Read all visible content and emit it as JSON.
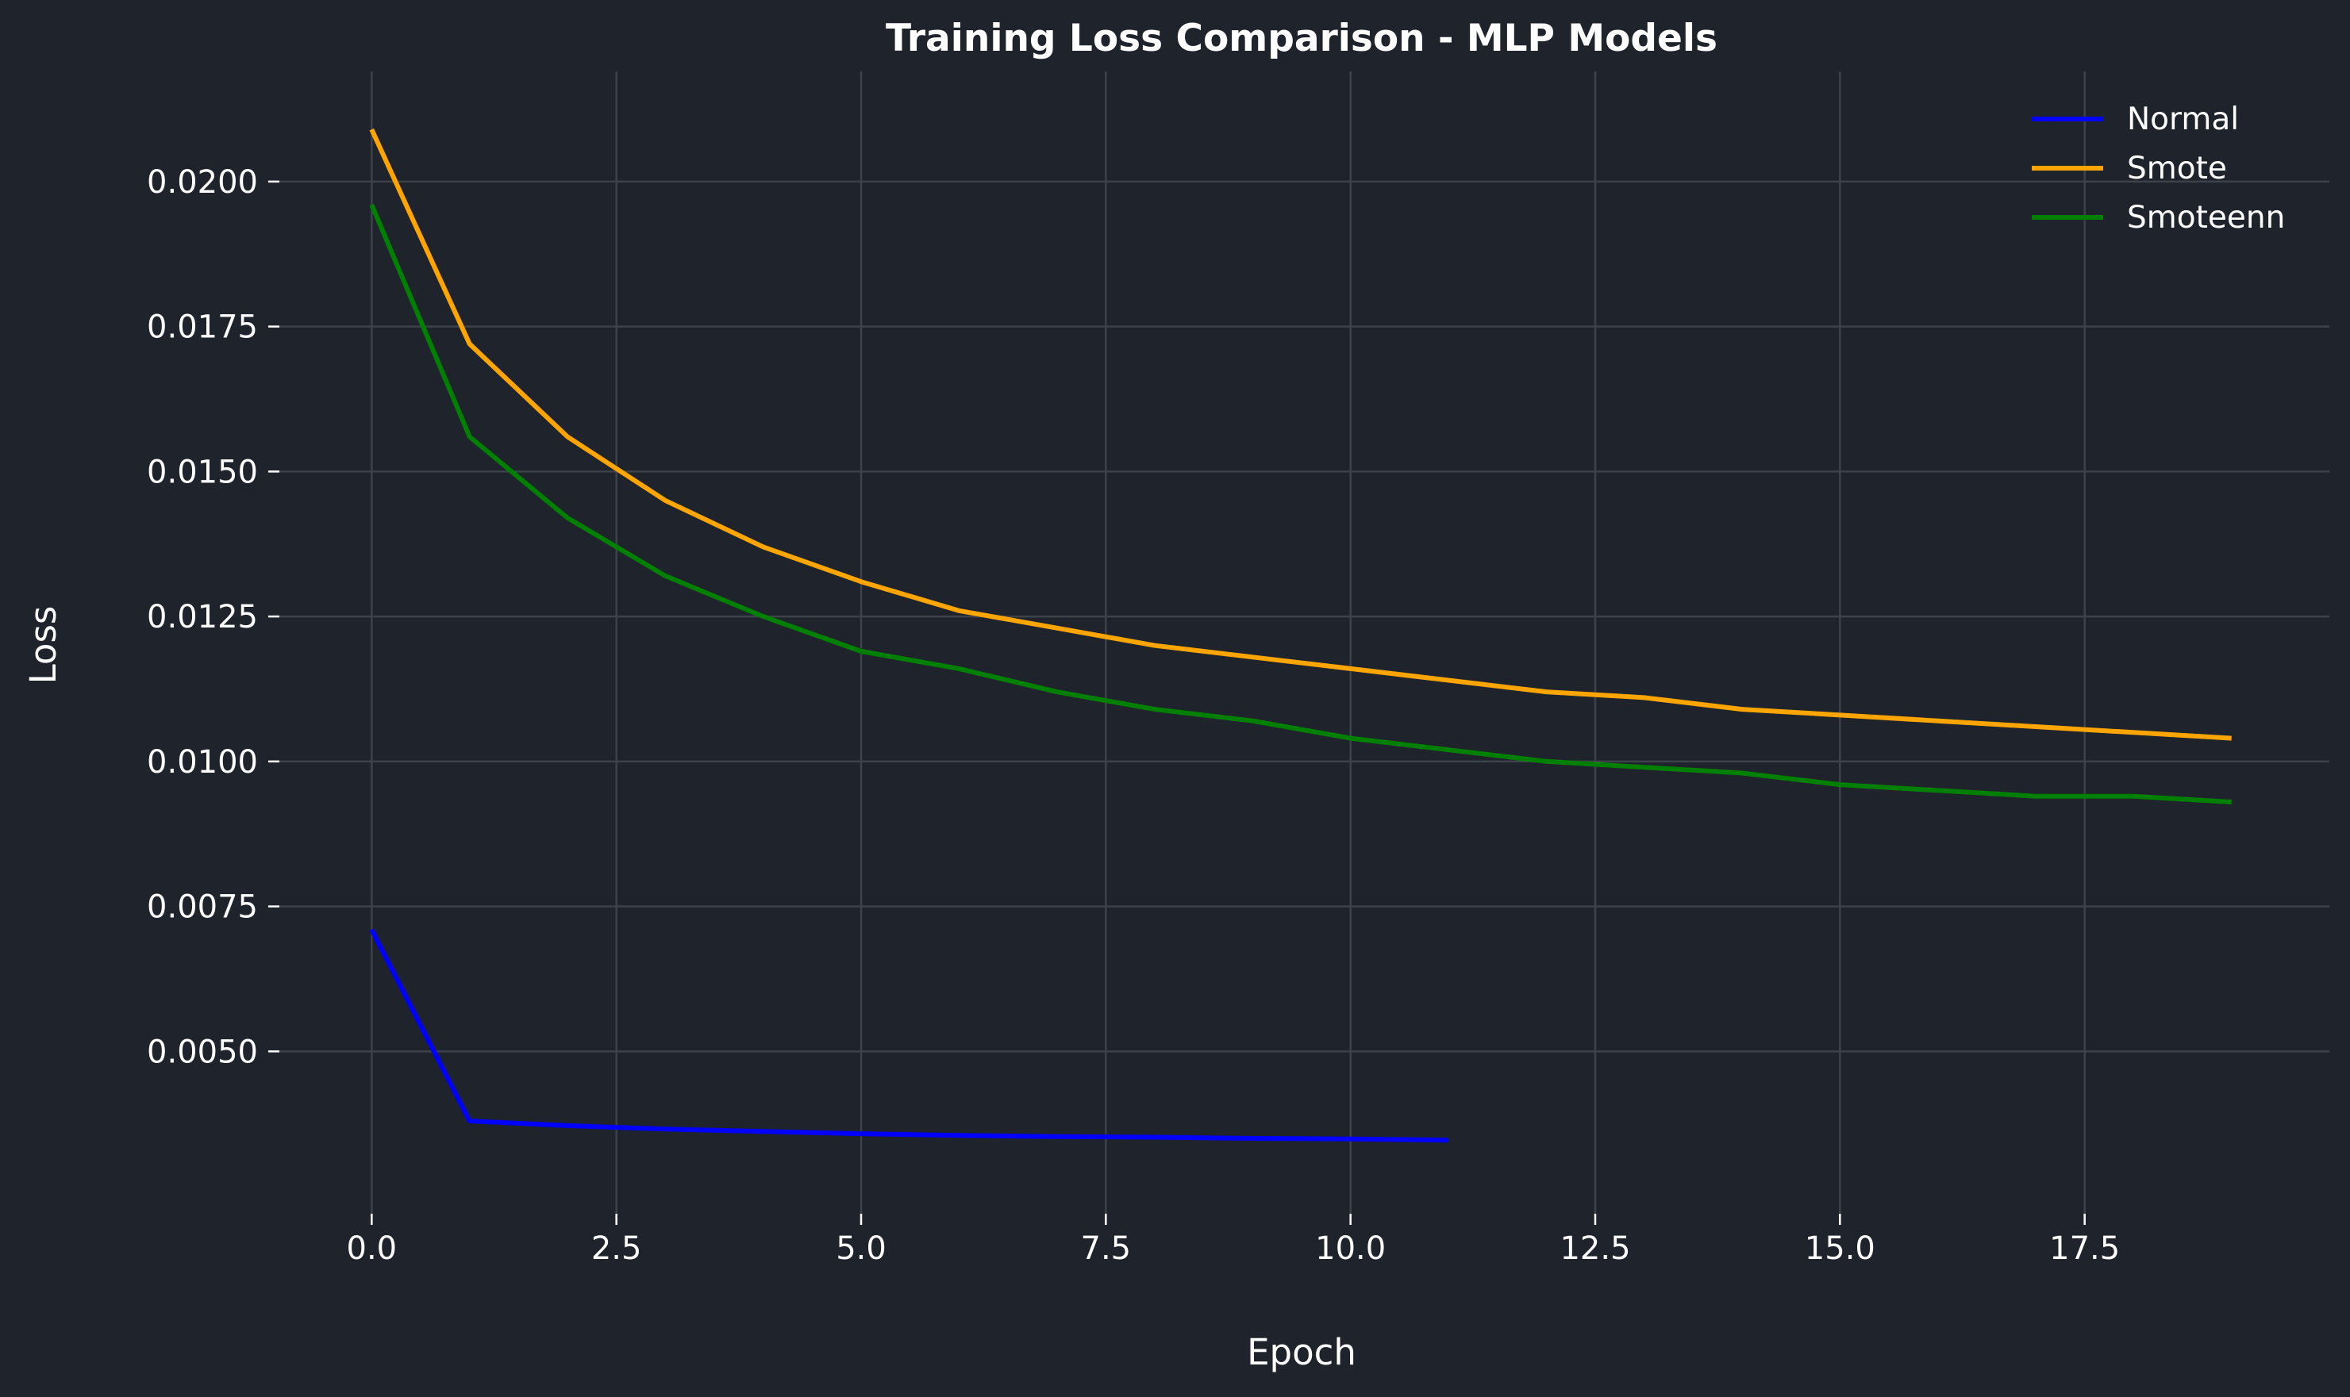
{
  "chart_data": {
    "type": "line",
    "title": "Training Loss Comparison - MLP Models",
    "xlabel": "Epoch",
    "ylabel": "Loss",
    "xlim": [
      -1.0,
      20.0
    ],
    "ylim": [
      0.0022,
      0.0219
    ],
    "xticks": [
      0,
      2.5,
      5,
      7.5,
      10,
      12.5,
      15,
      17.5
    ],
    "xtick_labels": [
      "0.0",
      "2.5",
      "5.0",
      "7.5",
      "10.0",
      "12.5",
      "15.0",
      "17.5"
    ],
    "yticks": [
      0.005,
      0.0075,
      0.01,
      0.0125,
      0.015,
      0.0175,
      0.02
    ],
    "ytick_labels": [
      "0.0050",
      "0.0075",
      "0.0100",
      "0.0125",
      "0.0150",
      "0.0175",
      "0.0200"
    ],
    "grid": true,
    "legend_position": "top-right",
    "background_color": "#1f232b",
    "grid_color": "#3d424b",
    "series": [
      {
        "name": "Normal",
        "color": "#0000ff",
        "x": [
          0,
          1,
          2,
          3,
          4,
          5,
          6,
          7,
          8,
          9,
          10,
          11
        ],
        "y": [
          0.0071,
          0.0038,
          0.00372,
          0.00366,
          0.00362,
          0.00358,
          0.00355,
          0.00353,
          0.00352,
          0.0035,
          0.00349,
          0.00347
        ]
      },
      {
        "name": "Smote",
        "color": "#ffa500",
        "x": [
          0,
          1,
          2,
          3,
          4,
          5,
          6,
          7,
          8,
          9,
          10,
          11,
          12,
          13,
          14,
          15,
          16,
          17,
          18,
          19
        ],
        "y": [
          0.0209,
          0.0172,
          0.0156,
          0.0145,
          0.0137,
          0.0131,
          0.0126,
          0.0123,
          0.012,
          0.0118,
          0.0116,
          0.0114,
          0.0112,
          0.0111,
          0.0109,
          0.0108,
          0.0107,
          0.0106,
          0.0105,
          0.0104
        ]
      },
      {
        "name": "Smoteenn",
        "color": "#008000",
        "x": [
          0,
          1,
          2,
          3,
          4,
          5,
          6,
          7,
          8,
          9,
          10,
          11,
          12,
          13,
          14,
          15,
          16,
          17,
          18,
          19
        ],
        "y": [
          0.0196,
          0.0156,
          0.0142,
          0.0132,
          0.0125,
          0.0119,
          0.0116,
          0.0112,
          0.0109,
          0.0107,
          0.0104,
          0.0102,
          0.01,
          0.0099,
          0.0098,
          0.0096,
          0.0095,
          0.0094,
          0.0094,
          0.0093
        ]
      }
    ]
  }
}
